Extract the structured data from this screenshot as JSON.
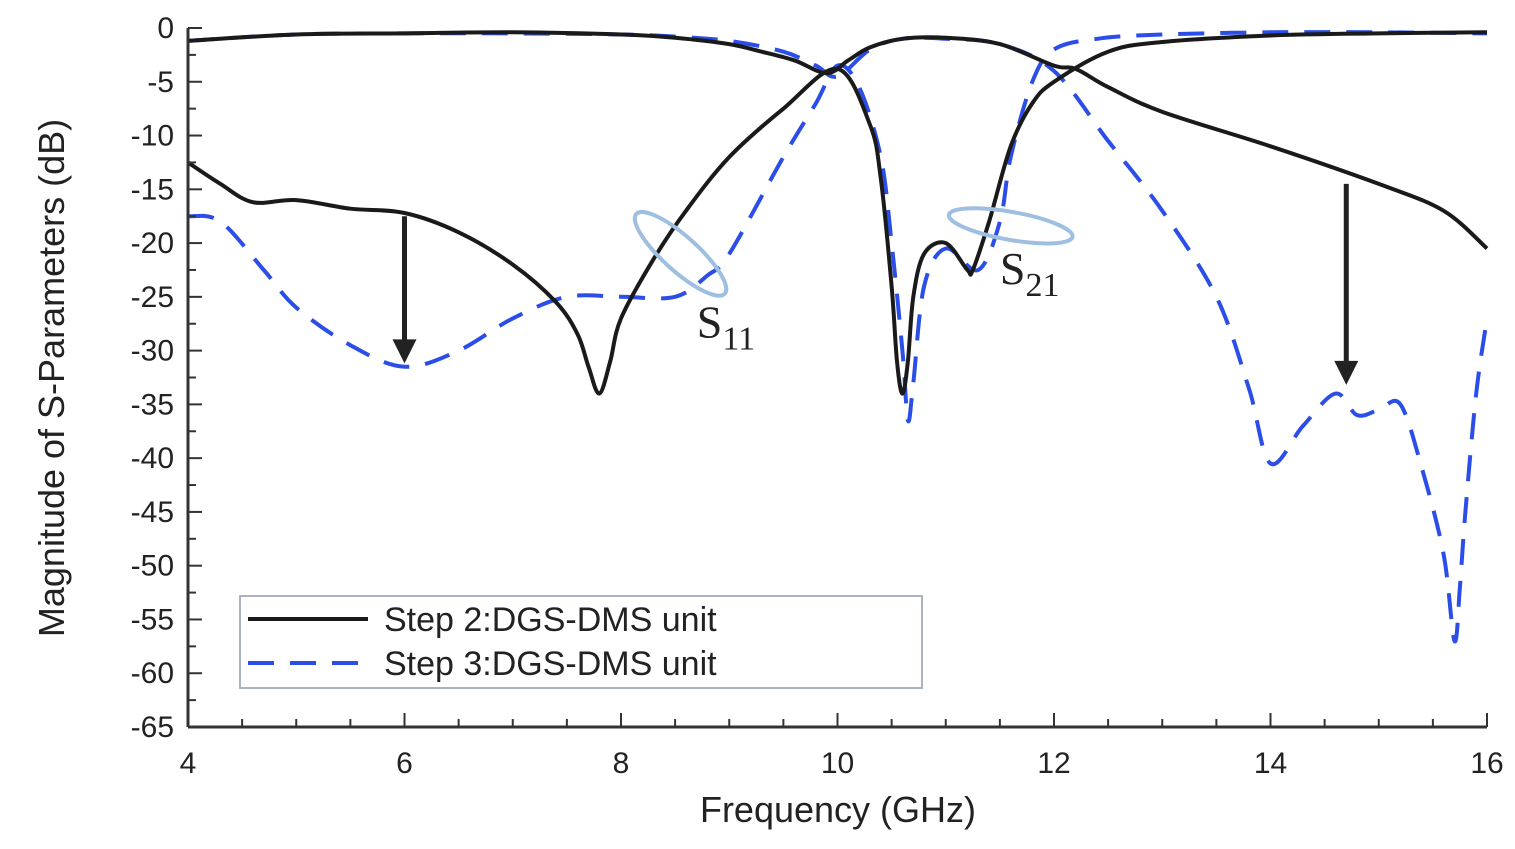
{
  "chart_data": {
    "type": "line",
    "title": "",
    "xlabel": "Frequency (GHz)",
    "ylabel": "Magnitude of S-Parameters (dB)",
    "xlim": [
      4,
      16
    ],
    "ylim": [
      -65,
      0
    ],
    "x_ticks": [
      4,
      6,
      8,
      10,
      12,
      14,
      16
    ],
    "x_tick_labels": [
      "4",
      "6",
      "8",
      "10",
      "12",
      "14",
      "16"
    ],
    "y_ticks": [
      0,
      -5,
      -10,
      -15,
      -20,
      -25,
      -30,
      -35,
      -40,
      -45,
      -50,
      -55,
      -60,
      -65
    ],
    "y_tick_labels": [
      "0",
      "-5",
      "-10",
      "-15",
      "-20",
      "-25",
      "-30",
      "-35",
      "-40",
      "-45",
      "-50",
      "-55",
      "-60",
      "-65"
    ],
    "grid": false,
    "legend_position": "bottom-left",
    "series": [
      {
        "name": "Step 2:DGS-DMS unit",
        "style": "solid",
        "color": "#1a1a1a",
        "curves": [
          {
            "parameter": "S11",
            "x": [
              4.0,
              4.3,
              4.6,
              5.0,
              5.5,
              6.0,
              6.5,
              7.0,
              7.4,
              7.6,
              7.7,
              7.8,
              7.9,
              8.0,
              8.3,
              8.6,
              9.0,
              9.5,
              10.0,
              10.3,
              10.4,
              10.5,
              10.55,
              10.6,
              10.65,
              10.7,
              10.8,
              11.0,
              11.2,
              11.25,
              11.4,
              11.6,
              11.8,
              12.0,
              12.5,
              13.0,
              14.0,
              15.0,
              16.0
            ],
            "y": [
              -12.5,
              -14.5,
              -16.2,
              -16.0,
              -16.8,
              -17.2,
              -19.0,
              -22.0,
              -25.5,
              -28.5,
              -31.5,
              -34.0,
              -31.0,
              -27.0,
              -21.5,
              -17.0,
              -12.0,
              -7.5,
              -3.8,
              -9.0,
              -14.0,
              -24.0,
              -31.0,
              -34.0,
              -31.0,
              -25.0,
              -21.0,
              -20.0,
              -22.5,
              -22.5,
              -18.0,
              -11.0,
              -7.0,
              -5.0,
              -2.2,
              -1.3,
              -0.7,
              -0.5,
              -0.4
            ]
          },
          {
            "parameter": "S21",
            "x": [
              4.0,
              5.0,
              6.0,
              7.0,
              8.0,
              8.5,
              9.0,
              9.3,
              9.6,
              9.9,
              10.1,
              10.3,
              10.6,
              11.0,
              11.5,
              12.0,
              12.2,
              12.5,
              13.0,
              14.0,
              15.0,
              15.6,
              16.0
            ],
            "y": [
              -1.2,
              -0.6,
              -0.5,
              -0.4,
              -0.6,
              -0.9,
              -1.5,
              -2.2,
              -3.0,
              -4.2,
              -3.0,
              -1.8,
              -1.0,
              -0.9,
              -1.5,
              -3.5,
              -3.8,
              -5.5,
              -7.8,
              -11.0,
              -14.5,
              -17.0,
              -20.5
            ]
          }
        ]
      },
      {
        "name": "Step 3:DGS-DMS unit",
        "style": "dashed",
        "color": "#2b4de8",
        "curves": [
          {
            "parameter": "S11",
            "x": [
              4.0,
              4.3,
              4.7,
              5.0,
              5.5,
              6.0,
              6.5,
              7.0,
              7.5,
              8.0,
              8.5,
              8.8,
              9.0,
              9.5,
              9.8,
              10.0,
              10.2,
              10.4,
              10.5,
              10.6,
              10.65,
              10.7,
              10.8,
              11.0,
              11.3,
              11.5,
              11.6,
              11.8,
              12.0,
              12.4,
              13.0,
              14.0,
              15.0,
              16.0
            ],
            "y": [
              -17.5,
              -18.0,
              -22.5,
              -26.0,
              -29.5,
              -31.5,
              -30.0,
              -27.0,
              -25.0,
              -25.0,
              -25.0,
              -23.0,
              -21.0,
              -12.0,
              -7.0,
              -3.5,
              -5.5,
              -12.0,
              -20.0,
              -30.0,
              -36.5,
              -33.0,
              -24.0,
              -20.5,
              -22.5,
              -18.0,
              -12.0,
              -5.0,
              -2.0,
              -1.0,
              -0.6,
              -0.4,
              -0.4,
              -0.5
            ]
          },
          {
            "parameter": "S21",
            "x": [
              4.0,
              5.0,
              6.0,
              7.0,
              8.0,
              8.5,
              9.0,
              9.5,
              9.8,
              10.0,
              10.3,
              10.6,
              11.0,
              11.5,
              12.0,
              12.5,
              13.0,
              13.5,
              13.8,
              14.0,
              14.3,
              14.6,
              14.8,
              15.0,
              15.2,
              15.4,
              15.6,
              15.7,
              15.75,
              15.8,
              15.9,
              16.0
            ],
            "y": [
              -1.2,
              -0.6,
              -0.5,
              -0.5,
              -0.6,
              -0.8,
              -1.2,
              -2.2,
              -3.5,
              -4.5,
              -2.0,
              -1.0,
              -1.0,
              -1.5,
              -4.0,
              -10.5,
              -17.0,
              -25.0,
              -33.5,
              -40.5,
              -37.0,
              -34.0,
              -36.0,
              -35.5,
              -35.0,
              -41.0,
              -49.0,
              -57.0,
              -52.0,
              -45.0,
              -34.0,
              -27.0
            ]
          }
        ]
      }
    ],
    "annotations": [
      {
        "label_main": "S",
        "label_sub": "11",
        "x": 8.7,
        "y": -28.8
      },
      {
        "label_main": "S",
        "label_sub": "21",
        "x": 11.5,
        "y": -23.8
      }
    ],
    "arrows": [
      {
        "x": 6.0,
        "y_from": -17.5,
        "y_to": -31.0
      },
      {
        "x": 14.7,
        "y_from": -14.5,
        "y_to": -33.0
      }
    ],
    "ellipses": [
      {
        "cx": 8.55,
        "cy": -21.0,
        "rx_ghz": 0.55,
        "ry_db": 1.6,
        "rotate_deg": 42
      },
      {
        "cx": 11.6,
        "cy": -18.4,
        "rx_ghz": 0.58,
        "ry_db": 1.3,
        "rotate_deg": 10
      }
    ],
    "colors": {
      "step2": "#1a1a1a",
      "step3": "#2b4de8",
      "ellipse": "#9fbfe0",
      "axis": "#333333"
    }
  }
}
